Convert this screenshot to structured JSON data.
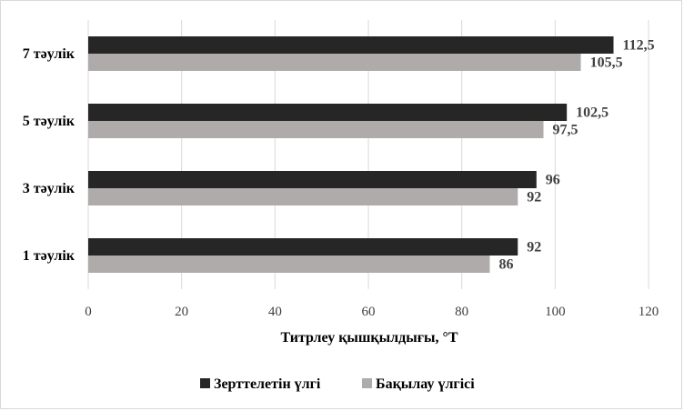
{
  "chart_data": {
    "type": "bar",
    "orientation": "horizontal",
    "categories": [
      "1 тәулік",
      "3 тәулік",
      "5 тәулік",
      "7 тәулік"
    ],
    "series": [
      {
        "name": "Зерттелетін үлгі",
        "color": "#262626",
        "values": [
          92,
          96,
          102.5,
          112.5
        ],
        "labels": [
          "92",
          "96",
          "102,5",
          "112,5"
        ]
      },
      {
        "name": "Бақылау үлгісі",
        "color": "#afabab",
        "values": [
          86,
          92,
          97.5,
          105.5
        ],
        "labels": [
          "86",
          "92",
          "97,5",
          "105,5"
        ]
      }
    ],
    "xlabel": "Титрлеу қышқылдығы, °T",
    "xlim": [
      0,
      120
    ],
    "xticks": [
      0,
      20,
      40,
      60,
      80,
      100,
      120
    ],
    "grid": "vertical",
    "legend": "bottom"
  }
}
